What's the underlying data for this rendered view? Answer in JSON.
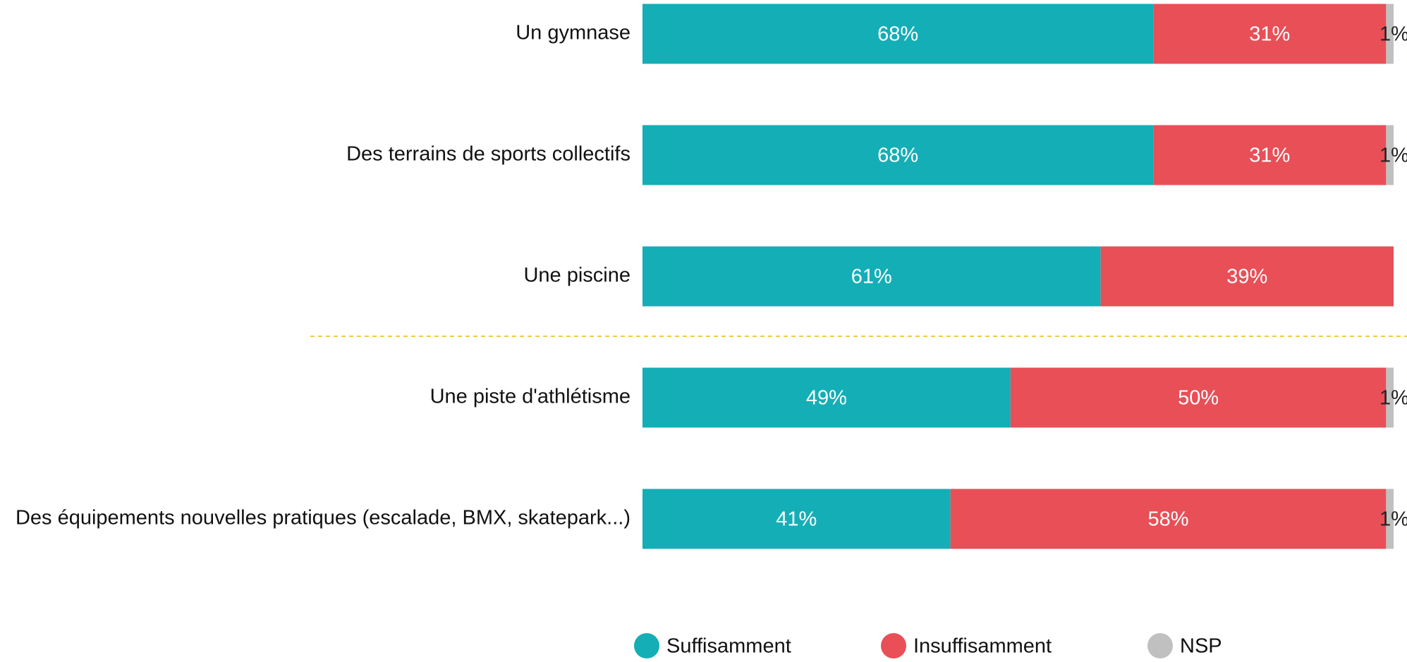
{
  "chart_data": {
    "type": "stacked-barh",
    "categories": [
      "Un gymnase",
      "Des terrains de sports collectifs",
      "Une piscine",
      "Une piste d'athlétisme",
      "Des équipements nouvelles pratiques (escalade, BMX, skatepark...)"
    ],
    "series": [
      {
        "name": "Suffisamment",
        "color": "#14aeb6",
        "values": [
          68,
          68,
          61,
          49,
          41
        ],
        "value_labels": [
          "68%",
          "68%",
          "61%",
          "49%",
          "41%"
        ]
      },
      {
        "name": "Insuffisamment",
        "color": "#e84f57",
        "values": [
          31,
          31,
          39,
          50,
          58
        ],
        "value_labels": [
          "31%",
          "31%",
          "39%",
          "50%",
          "58%"
        ]
      },
      {
        "name": "NSP",
        "color": "#c0c0c0",
        "values": [
          1,
          1,
          0,
          1,
          1
        ],
        "value_labels": [
          "1%",
          "1%",
          null,
          "1%",
          "1%"
        ]
      }
    ],
    "xlim": [
      0,
      100
    ],
    "legend": "bottom"
  }
}
